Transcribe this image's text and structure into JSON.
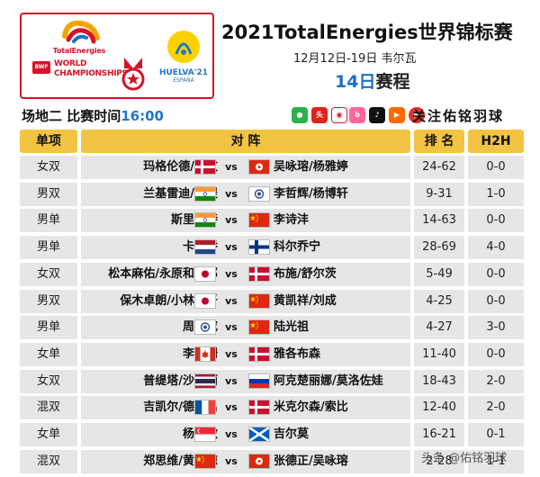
{
  "header": {
    "sponsor_name": "TotalEnergies",
    "bwf_badge": "BWF",
    "event_logo_line1": "WORLD",
    "event_logo_line2": "CHAMPIONSHIPS",
    "host_line1": "HUELVA'21",
    "host_line2": "ESPAÑA",
    "title": "2021TotalEnergies世界锦标赛",
    "dates": "12月12日-19日 韦尔瓦",
    "day": "14日",
    "day_suffix": "赛程"
  },
  "court": {
    "label": "场地二 比赛时间",
    "time": "16:00"
  },
  "social": {
    "icons": [
      "wechat-icon",
      "toutiao-icon",
      "weibo-icon",
      "bilibili-icon",
      "douyin-icon",
      "kuaishou-icon",
      "xigua-icon",
      "video-icon"
    ],
    "follow_text": "关注佑铭羽球"
  },
  "table": {
    "headers": {
      "type": "单项",
      "match": "对 阵",
      "rank": "排 名",
      "h2h": "H2H"
    },
    "rows": [
      {
        "type": "女双",
        "left": "玛格伦德/拉文",
        "left_flag": "DEN",
        "vs": "vs",
        "right": "吴咏瑢/杨雅婷",
        "right_flag": "HKG",
        "rank": "24-62",
        "h2h": "0-0"
      },
      {
        "type": "男双",
        "left": "兰基雷迪/谢提",
        "left_flag": "IND",
        "vs": "vs",
        "right": "李哲辉/杨博轩",
        "right_flag": "TPE",
        "rank": "9-31",
        "h2h": "1-0"
      },
      {
        "type": "男单",
        "left": "斯里坎特",
        "left_flag": "IND",
        "vs": "vs",
        "right": "李诗沣",
        "right_flag": "CHN",
        "rank": "14-63",
        "h2h": "0-0"
      },
      {
        "type": "男单",
        "left": "卡尔乔",
        "left_flag": "NED",
        "vs": "vs",
        "right": "科尔乔宁",
        "right_flag": "FIN",
        "rank": "28-69",
        "h2h": "4-0"
      },
      {
        "type": "女双",
        "left": "松本麻佑/永原和可那",
        "left_flag": "JPN",
        "vs": "vs",
        "right": "布施/舒尔茨",
        "right_flag": "DEN",
        "rank": "5-49",
        "h2h": "0-0"
      },
      {
        "type": "男双",
        "left": "保木卓朗/小林优吾",
        "left_flag": "JPN",
        "vs": "vs",
        "right": "黄凯祥/刘成",
        "right_flag": "CHN",
        "rank": "4-25",
        "h2h": "0-0"
      },
      {
        "type": "男单",
        "left": "周天成",
        "left_flag": "TPE",
        "vs": "vs",
        "right": "陆光祖",
        "right_flag": "CHN",
        "rank": "4-27",
        "h2h": "3-0"
      },
      {
        "type": "女单",
        "left": "李文珊",
        "left_flag": "CAN",
        "vs": "vs",
        "right": "雅各布森",
        "right_flag": "DEN",
        "rank": "11-40",
        "h2h": "0-0"
      },
      {
        "type": "女双",
        "left": "普缇塔/沙西丽",
        "left_flag": "THA",
        "vs": "vs",
        "right": "阿克楚丽娜/莫洛佐娃",
        "right_flag": "RUS",
        "rank": "18-43",
        "h2h": "2-0"
      },
      {
        "type": "混双",
        "left": "吉凯尔/德尔吕",
        "left_flag": "FRA",
        "vs": "vs",
        "right": "米克尔森/索比",
        "right_flag": "DEN",
        "rank": "12-40",
        "h2h": "2-0"
      },
      {
        "type": "女单",
        "left": "杨佳敏",
        "left_flag": "SGP",
        "vs": "vs",
        "right": "吉尔莫",
        "right_flag": "SCO",
        "rank": "16-21",
        "h2h": "0-1"
      },
      {
        "type": "混双",
        "left": "郑思维/黄雅琼",
        "left_flag": "CHN",
        "vs": "vs",
        "right": "张德正/吴咏瑢",
        "right_flag": "HKG",
        "rank": "2-28",
        "h2h": "1-1"
      }
    ]
  },
  "watermark": "头条 @佑铭羽球",
  "colors": {
    "brand_red": "#d5122a",
    "accent_blue": "#1f6fc5",
    "header_yellow": "#f3c441",
    "row_gray": "#e6e6e6"
  }
}
